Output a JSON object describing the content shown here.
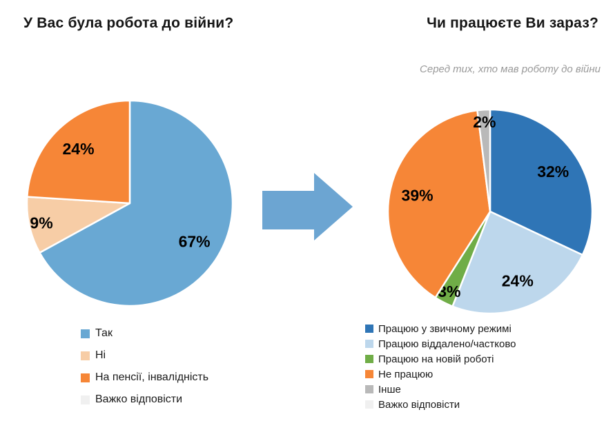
{
  "page": {
    "background": "#ffffff",
    "text_color": "#151515"
  },
  "arrow": {
    "meaning": "flow-from-left-chart-to-right-chart",
    "color": "#6CA5D2"
  },
  "chart_data": [
    {
      "type": "pie",
      "title": "У Вас була робота до війни?",
      "value_suffix": "%",
      "start_angle_deg": 0,
      "direction": "clockwise",
      "legend_position": "bottom",
      "slices": [
        {
          "label": "Так",
          "value": 67,
          "color": "#69A8D3"
        },
        {
          "label": "Ні",
          "value": 9,
          "color": "#F7CDA6"
        },
        {
          "label": "На пенсії, інвалідність",
          "value": 24,
          "color": "#F68637"
        },
        {
          "label": "Важко відповісти",
          "value": 0,
          "color": "#F0F0F0"
        }
      ]
    },
    {
      "type": "pie",
      "title": "Чи працюєте Ви зараз?",
      "subtitle": "Серед тих, хто мав роботу до війни",
      "value_suffix": "%",
      "start_angle_deg": 0,
      "direction": "clockwise",
      "legend_position": "bottom",
      "slices": [
        {
          "label": "Працюю у звичному режимі",
          "value": 32,
          "color": "#2F75B6"
        },
        {
          "label": "Працюю віддалено/частково",
          "value": 24,
          "color": "#BDD7EC"
        },
        {
          "label": "Працюю на новій роботі",
          "value": 3,
          "color": "#70AD47"
        },
        {
          "label": "Не працюю",
          "value": 39,
          "color": "#F68637"
        },
        {
          "label": "Інше",
          "value": 2,
          "color": "#B9B9B9"
        },
        {
          "label": "Важко відповісти",
          "value": 0,
          "color": "#F0F0F0"
        }
      ]
    }
  ]
}
